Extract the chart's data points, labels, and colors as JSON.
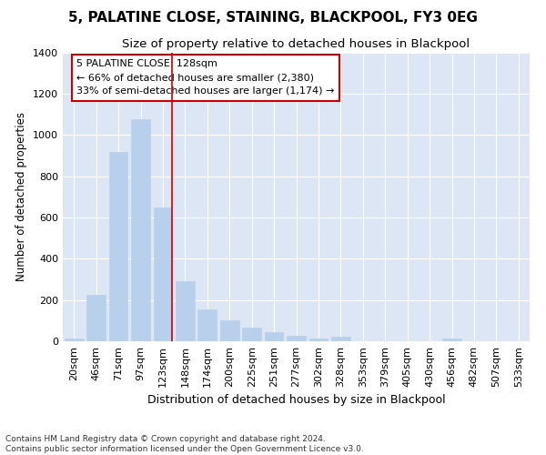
{
  "title1": "5, PALATINE CLOSE, STAINING, BLACKPOOL, FY3 0EG",
  "title2": "Size of property relative to detached houses in Blackpool",
  "xlabel": "Distribution of detached houses by size in Blackpool",
  "ylabel": "Number of detached properties",
  "categories": [
    "20sqm",
    "46sqm",
    "71sqm",
    "97sqm",
    "123sqm",
    "148sqm",
    "174sqm",
    "200sqm",
    "225sqm",
    "251sqm",
    "277sqm",
    "302sqm",
    "328sqm",
    "353sqm",
    "379sqm",
    "405sqm",
    "430sqm",
    "456sqm",
    "482sqm",
    "507sqm",
    "533sqm"
  ],
  "values": [
    15,
    225,
    915,
    1075,
    650,
    290,
    155,
    100,
    68,
    42,
    28,
    15,
    20,
    0,
    0,
    0,
    0,
    15,
    0,
    0,
    0
  ],
  "bar_color": "#b8d0eb",
  "bar_edge_color": "#b8d0eb",
  "vline_color": "#cc0000",
  "annotation_text": "5 PALATINE CLOSE: 128sqm\n← 66% of detached houses are smaller (2,380)\n33% of semi-detached houses are larger (1,174) →",
  "annotation_box_color": "#ffffff",
  "annotation_box_edge": "#cc0000",
  "ylim": [
    0,
    1400
  ],
  "yticks": [
    0,
    200,
    400,
    600,
    800,
    1000,
    1200,
    1400
  ],
  "bg_color": "#dce6f5",
  "footer_line1": "Contains HM Land Registry data © Crown copyright and database right 2024.",
  "footer_line2": "Contains public sector information licensed under the Open Government Licence v3.0.",
  "title1_fontsize": 11,
  "title2_fontsize": 9.5,
  "xlabel_fontsize": 9,
  "ylabel_fontsize": 8.5,
  "tick_fontsize": 8,
  "footer_fontsize": 6.5,
  "annot_fontsize": 8
}
